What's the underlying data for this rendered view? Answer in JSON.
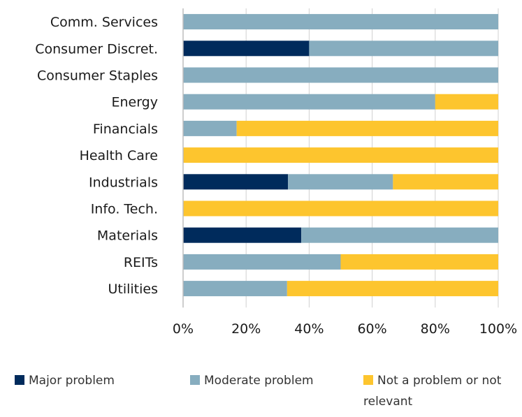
{
  "chart_data": {
    "type": "bar",
    "orientation": "horizontal",
    "stacked": true,
    "categories": [
      "Comm. Services",
      "Consumer Discret.",
      "Consumer Staples",
      "Energy",
      "Financials",
      "Health Care",
      "Industrials",
      "Info. Tech.",
      "Materials",
      "REITs",
      "Utilities"
    ],
    "series": [
      {
        "name": "Major problem",
        "color": "#002b5c",
        "values": [
          0,
          40,
          0,
          0,
          0,
          0,
          33.3,
          0,
          37.5,
          0,
          0
        ]
      },
      {
        "name": "Moderate problem",
        "color": "#87adbf",
        "values": [
          100,
          60,
          100,
          80,
          17,
          0,
          33.3,
          0,
          62.5,
          50,
          33
        ]
      },
      {
        "name": "Not a problem or not relevant",
        "color": "#fdc52e",
        "values": [
          0,
          0,
          0,
          20,
          83,
          100,
          33.4,
          100,
          0,
          50,
          67
        ]
      }
    ],
    "xlim": [
      0,
      100
    ],
    "x_ticks": [
      "0%",
      "20%",
      "40%",
      "60%",
      "80%",
      "100%"
    ],
    "grid": "vertical gridlines at each tick",
    "legend_position": "bottom"
  }
}
